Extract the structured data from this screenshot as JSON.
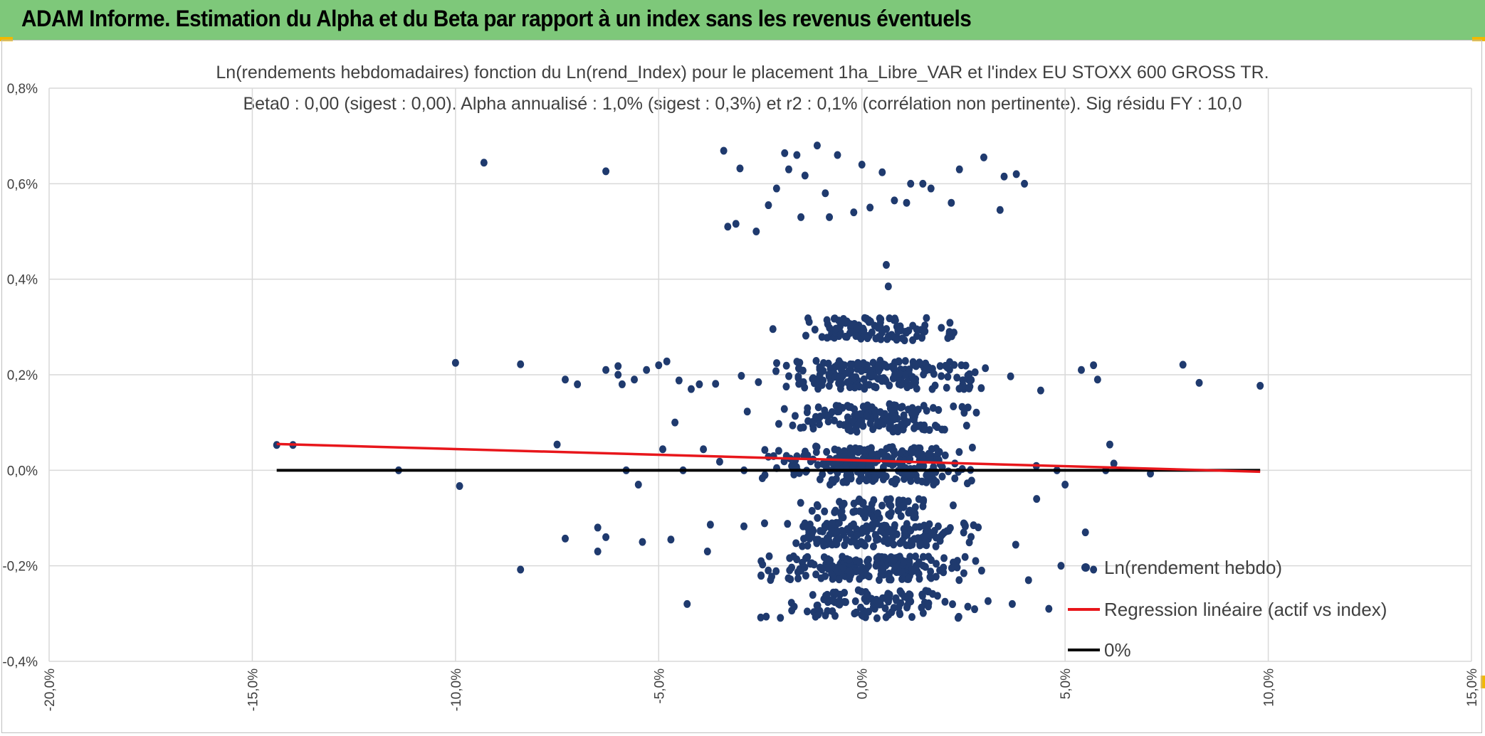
{
  "header": {
    "title": "ADAM Informe. Estimation du Alpha et du Beta par rapport à un index sans les revenus éventuels"
  },
  "colors": {
    "banner": "#7ec87a",
    "points": "#1f3a6e",
    "regression": "#e8161b",
    "zero_line": "#000000",
    "grid": "#d9d9d9"
  },
  "chart_data": {
    "type": "scatter",
    "title": "Ln(rendements hebdomadaires) fonction du Ln(rend_Index) pour le placement 1ha_Libre_VAR et l'index EU STOXX 600 GROSS TR.",
    "subtitle": "Beta0 : 0,00 (sigest : 0,00). Alpha annualisé : 1,0% (sigest : 0,3%) et r2 : 0,1% (corrélation non pertinente). Sig résidu FY : 10,0",
    "xlim": [
      -20,
      15
    ],
    "ylim": [
      -0.4,
      0.8
    ],
    "x_ticks": [
      "-20,0%",
      "-15,0%",
      "-10,0%",
      "-5,0%",
      "0,0%",
      "5,0%",
      "10,0%",
      "15,0%"
    ],
    "y_ticks": [
      "-0,4%",
      "-0,2%",
      "0,0%",
      "0,2%",
      "0,4%",
      "0,6%",
      "0,8%"
    ],
    "grid": true,
    "legend_position": "bottom-right",
    "series": [
      {
        "name": "Ln(rendement hebdo)",
        "kind": "points",
        "points": [
          [
            -14.4,
            0.053
          ],
          [
            -14.0,
            0.053
          ],
          [
            -11.4,
            0.0
          ],
          [
            -10.0,
            0.225
          ],
          [
            -9.9,
            -0.033
          ],
          [
            -9.3,
            0.644
          ],
          [
            -8.4,
            0.222
          ],
          [
            -8.4,
            -0.208
          ],
          [
            -7.5,
            0.054
          ],
          [
            -7.3,
            0.19
          ],
          [
            -7.3,
            -0.143
          ],
          [
            -7.0,
            0.18
          ],
          [
            -6.5,
            -0.12
          ],
          [
            -6.5,
            -0.17
          ],
          [
            -6.3,
            0.21
          ],
          [
            -6.3,
            0.626
          ],
          [
            -6.3,
            -0.14
          ],
          [
            -6.0,
            0.2
          ],
          [
            -6.0,
            0.218
          ],
          [
            -5.9,
            0.18
          ],
          [
            -5.8,
            0.0
          ],
          [
            -5.6,
            0.19
          ],
          [
            -5.5,
            -0.03
          ],
          [
            -5.4,
            -0.15
          ],
          [
            -5.3,
            0.21
          ],
          [
            -5.0,
            0.22
          ],
          [
            -4.9,
            0.044
          ],
          [
            -4.8,
            0.228
          ],
          [
            -4.7,
            -0.145
          ],
          [
            -4.6,
            0.1
          ],
          [
            -4.5,
            0.188
          ],
          [
            -4.4,
            0.0
          ],
          [
            -4.3,
            -0.28
          ],
          [
            -4.2,
            0.17
          ],
          [
            -4.0,
            0.18
          ],
          [
            -3.9,
            0.044
          ],
          [
            -3.8,
            -0.17
          ],
          [
            -3.6,
            0.181
          ],
          [
            -3.5,
            0.018
          ],
          [
            -3.4,
            0.669
          ],
          [
            -3.3,
            0.51
          ],
          [
            -3.1,
            0.516
          ],
          [
            -3.0,
            0.632
          ],
          [
            -2.9,
            0.0
          ],
          [
            -2.6,
            0.5
          ],
          [
            -2.3,
            0.555
          ],
          [
            -2.1,
            0.59
          ],
          [
            -1.9,
            0.664
          ],
          [
            -1.8,
            0.63
          ],
          [
            -1.6,
            0.66
          ],
          [
            -1.5,
            0.53
          ],
          [
            -1.4,
            0.617
          ],
          [
            -1.1,
            0.68
          ],
          [
            -0.9,
            0.58
          ],
          [
            -0.8,
            0.53
          ],
          [
            -0.6,
            0.66
          ],
          [
            -0.2,
            0.54
          ],
          [
            0.0,
            0.64
          ],
          [
            0.2,
            0.55
          ],
          [
            0.5,
            0.624
          ],
          [
            0.6,
            0.43
          ],
          [
            0.65,
            0.385
          ],
          [
            0.8,
            0.565
          ],
          [
            1.1,
            0.56
          ],
          [
            1.2,
            0.6
          ],
          [
            1.5,
            0.6
          ],
          [
            1.7,
            0.59
          ],
          [
            2.2,
            0.56
          ],
          [
            2.4,
            0.63
          ],
          [
            3.0,
            0.655
          ],
          [
            3.4,
            0.545
          ],
          [
            3.5,
            0.615
          ],
          [
            3.8,
            0.62
          ],
          [
            4.0,
            0.6
          ],
          [
            4.4,
            0.167
          ],
          [
            4.8,
            0.0
          ],
          [
            4.9,
            -0.2
          ],
          [
            5.0,
            -0.03
          ],
          [
            5.4,
            0.21
          ],
          [
            5.5,
            -0.13
          ],
          [
            5.7,
            -0.208
          ],
          [
            5.7,
            0.22
          ],
          [
            5.8,
            0.19
          ],
          [
            6.0,
            0.0
          ],
          [
            6.1,
            0.054
          ],
          [
            6.2,
            0.014
          ],
          [
            7.1,
            -0.007
          ],
          [
            7.9,
            0.221
          ],
          [
            8.3,
            0.183
          ],
          [
            9.8,
            0.177
          ],
          [
            4.6,
            -0.29
          ],
          [
            4.3,
            -0.06
          ],
          [
            4.1,
            -0.23
          ],
          [
            3.7,
            -0.28
          ]
        ],
        "note": "Dense point cloud concentrated between -4% and +4.5% with y in {-0.3..-0.1, -0.05..0.05, 0.1..0.32}; generated procedurally."
      },
      {
        "name": "Regression linéaire (actif vs index)",
        "kind": "line",
        "points": [
          [
            -14.4,
            0.055
          ],
          [
            9.8,
            -0.003
          ]
        ]
      },
      {
        "name": "0%",
        "kind": "line",
        "points": [
          [
            -14.4,
            0.0
          ],
          [
            9.8,
            0.0
          ]
        ]
      }
    ]
  }
}
